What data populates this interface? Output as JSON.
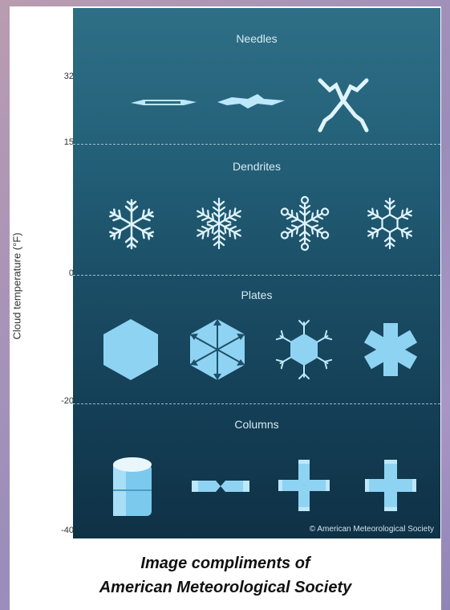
{
  "axis": {
    "title": "Cloud temperature  (°F)",
    "ticks": [
      {
        "label": "32",
        "value": 32
      },
      {
        "label": "15",
        "value": 15
      },
      {
        "label": "0",
        "value": 0
      },
      {
        "label": "-20",
        "value": -20
      },
      {
        "label": "-40",
        "value": -40
      }
    ]
  },
  "zones": [
    {
      "name": "Needles",
      "types": [
        "needle-short",
        "needle-long",
        "needle-cross"
      ]
    },
    {
      "name": "Dendrites",
      "types": [
        "dendrite-simple",
        "dendrite-fern",
        "dendrite-ringed",
        "dendrite-hex-center"
      ]
    },
    {
      "name": "Plates",
      "types": [
        "plate-hexagon",
        "plate-sectored",
        "plate-stellar",
        "plate-broad-branch"
      ]
    },
    {
      "name": "Columns",
      "types": [
        "column-cylinder",
        "column-capped",
        "column-cross",
        "column-plus"
      ]
    }
  ],
  "copyright": "© American Meteorological Society",
  "caption": {
    "line1": "Image compliments of",
    "line2": "American Meteorological Society"
  },
  "colors": {
    "crystal": "#8fd3f2",
    "crystal_light": "#bde7fb",
    "panel_top": "#2f6f86",
    "panel_bottom": "#0f3146"
  }
}
